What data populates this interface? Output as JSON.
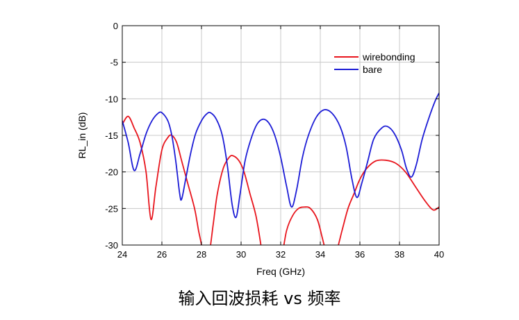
{
  "caption": "输入回波损耗 vs 频率",
  "chart_data": {
    "type": "line",
    "xlabel": "Freq (GHz)",
    "ylabel": "RL_in (dB)",
    "xlim": [
      24,
      40
    ],
    "ylim": [
      -30,
      0
    ],
    "xticks": [
      24,
      26,
      28,
      30,
      32,
      34,
      36,
      38,
      40
    ],
    "yticks": [
      0,
      -5,
      -10,
      -15,
      -20,
      -25,
      -30
    ],
    "grid": true,
    "legend_position": "top-right",
    "series": [
      {
        "name": "wirebonding",
        "color": "#e8141c",
        "points": [
          [
            24,
            -13.5
          ],
          [
            24.3,
            -12.4
          ],
          [
            24.6,
            -14
          ],
          [
            24.9,
            -16
          ],
          [
            25.2,
            -20
          ],
          [
            25.45,
            -26.5
          ],
          [
            25.7,
            -22
          ],
          [
            26,
            -17
          ],
          [
            26.3,
            -15.3
          ],
          [
            26.5,
            -15
          ],
          [
            26.75,
            -16
          ],
          [
            27,
            -18.5
          ],
          [
            27.3,
            -21.5
          ],
          [
            27.65,
            -25
          ],
          [
            27.85,
            -28
          ],
          [
            28,
            -30
          ],
          [
            28.15,
            -33
          ],
          [
            28.35,
            -32
          ],
          [
            28.6,
            -27
          ],
          [
            28.8,
            -23
          ],
          [
            29.1,
            -19.5
          ],
          [
            29.4,
            -18
          ],
          [
            29.6,
            -17.8
          ],
          [
            29.9,
            -18.5
          ],
          [
            30.15,
            -20
          ],
          [
            30.45,
            -23
          ],
          [
            30.75,
            -26
          ],
          [
            31,
            -30
          ],
          [
            31.15,
            -33
          ],
          [
            31.5,
            -34
          ],
          [
            32,
            -32
          ],
          [
            32.3,
            -28
          ],
          [
            32.6,
            -26
          ],
          [
            32.9,
            -25
          ],
          [
            33.2,
            -24.8
          ],
          [
            33.5,
            -25
          ],
          [
            33.85,
            -26.5
          ],
          [
            34.1,
            -29
          ],
          [
            34.25,
            -30.5
          ],
          [
            34.5,
            -32
          ],
          [
            34.8,
            -31
          ],
          [
            35.1,
            -28
          ],
          [
            35.4,
            -25
          ],
          [
            35.7,
            -23
          ],
          [
            36,
            -21
          ],
          [
            36.35,
            -19.5
          ],
          [
            36.8,
            -18.5
          ],
          [
            37.3,
            -18.4
          ],
          [
            37.8,
            -18.8
          ],
          [
            38.3,
            -20
          ],
          [
            38.8,
            -22
          ],
          [
            39.3,
            -24
          ],
          [
            39.7,
            -25.2
          ],
          [
            40,
            -24.8
          ]
        ]
      },
      {
        "name": "bare",
        "color": "#1c1cd6",
        "points": [
          [
            24,
            -13
          ],
          [
            24.3,
            -16
          ],
          [
            24.6,
            -19.8
          ],
          [
            24.9,
            -17.5
          ],
          [
            25.2,
            -14.8
          ],
          [
            25.5,
            -13
          ],
          [
            25.8,
            -12
          ],
          [
            26,
            -11.9
          ],
          [
            26.3,
            -13
          ],
          [
            26.5,
            -15
          ],
          [
            26.7,
            -18.5
          ],
          [
            26.9,
            -23
          ],
          [
            27,
            -23.7
          ],
          [
            27.2,
            -21
          ],
          [
            27.45,
            -17.5
          ],
          [
            27.7,
            -14.8
          ],
          [
            28,
            -13
          ],
          [
            28.25,
            -12.1
          ],
          [
            28.45,
            -11.9
          ],
          [
            28.75,
            -12.8
          ],
          [
            29.05,
            -15
          ],
          [
            29.3,
            -19
          ],
          [
            29.55,
            -24.5
          ],
          [
            29.75,
            -26.2
          ],
          [
            29.95,
            -23
          ],
          [
            30.2,
            -18.5
          ],
          [
            30.5,
            -15.5
          ],
          [
            30.8,
            -13.5
          ],
          [
            31.1,
            -12.8
          ],
          [
            31.4,
            -13.3
          ],
          [
            31.7,
            -15
          ],
          [
            32,
            -18
          ],
          [
            32.3,
            -22
          ],
          [
            32.55,
            -24.8
          ],
          [
            32.8,
            -22.5
          ],
          [
            33.1,
            -18
          ],
          [
            33.4,
            -15
          ],
          [
            33.8,
            -12.5
          ],
          [
            34.2,
            -11.5
          ],
          [
            34.6,
            -12
          ],
          [
            35,
            -13.8
          ],
          [
            35.3,
            -16.5
          ],
          [
            35.6,
            -21
          ],
          [
            35.85,
            -23.5
          ],
          [
            36.1,
            -21.5
          ],
          [
            36.4,
            -18.5
          ],
          [
            36.7,
            -15.5
          ],
          [
            37.1,
            -14
          ],
          [
            37.4,
            -13.8
          ],
          [
            37.75,
            -14.8
          ],
          [
            38.1,
            -17
          ],
          [
            38.35,
            -19.5
          ],
          [
            38.6,
            -20.7
          ],
          [
            38.85,
            -19
          ],
          [
            39.15,
            -15.5
          ],
          [
            39.5,
            -12.5
          ],
          [
            39.8,
            -10.3
          ],
          [
            40,
            -9.2
          ]
        ]
      }
    ]
  }
}
